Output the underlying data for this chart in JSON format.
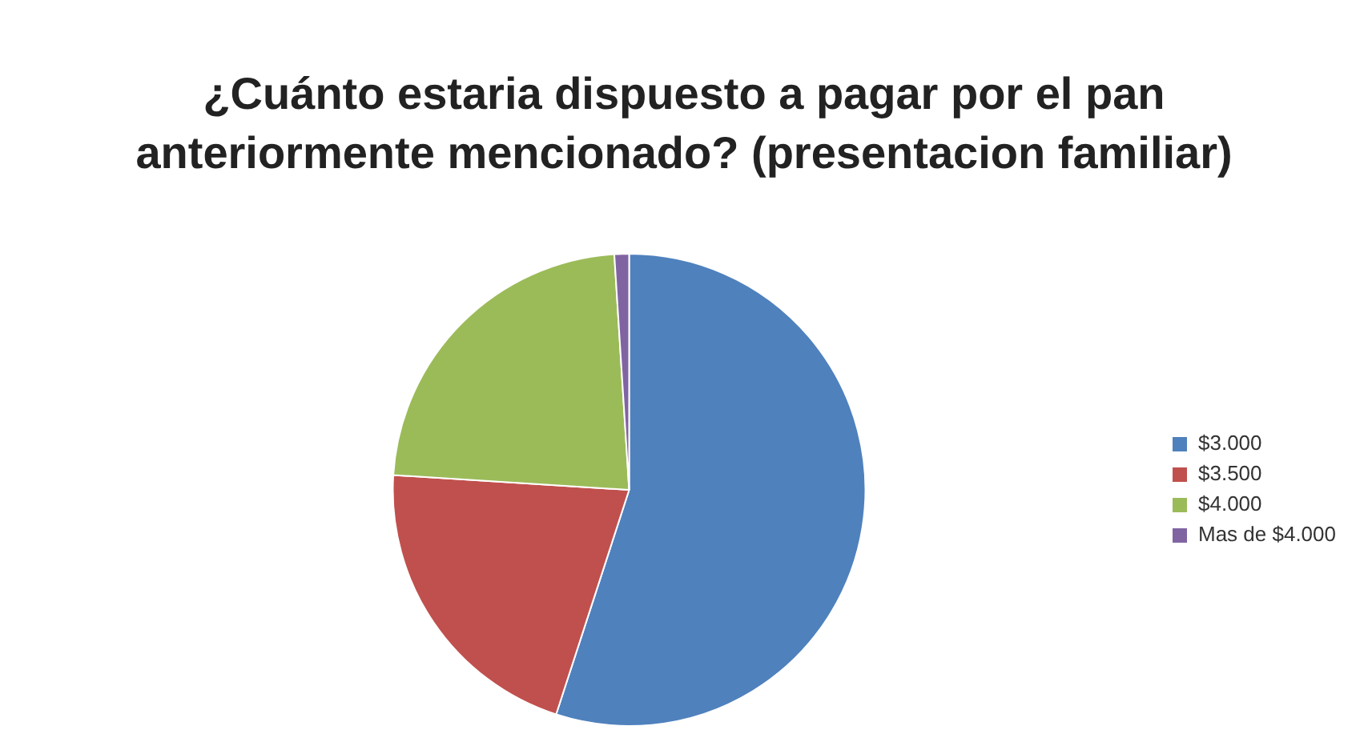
{
  "chart_data": {
    "type": "pie",
    "title": "¿Cuánto estaria dispuesto a pagar por el pan anteriormente mencionado? (presentacion familiar)",
    "categories": [
      "$3.000",
      "$3.500",
      "$4.000",
      "Mas de $4.000"
    ],
    "values": [
      55,
      21,
      23,
      1
    ],
    "colors": [
      "#4f81bd",
      "#c0504d",
      "#9bbb59",
      "#8064a2"
    ],
    "legend": "right"
  }
}
